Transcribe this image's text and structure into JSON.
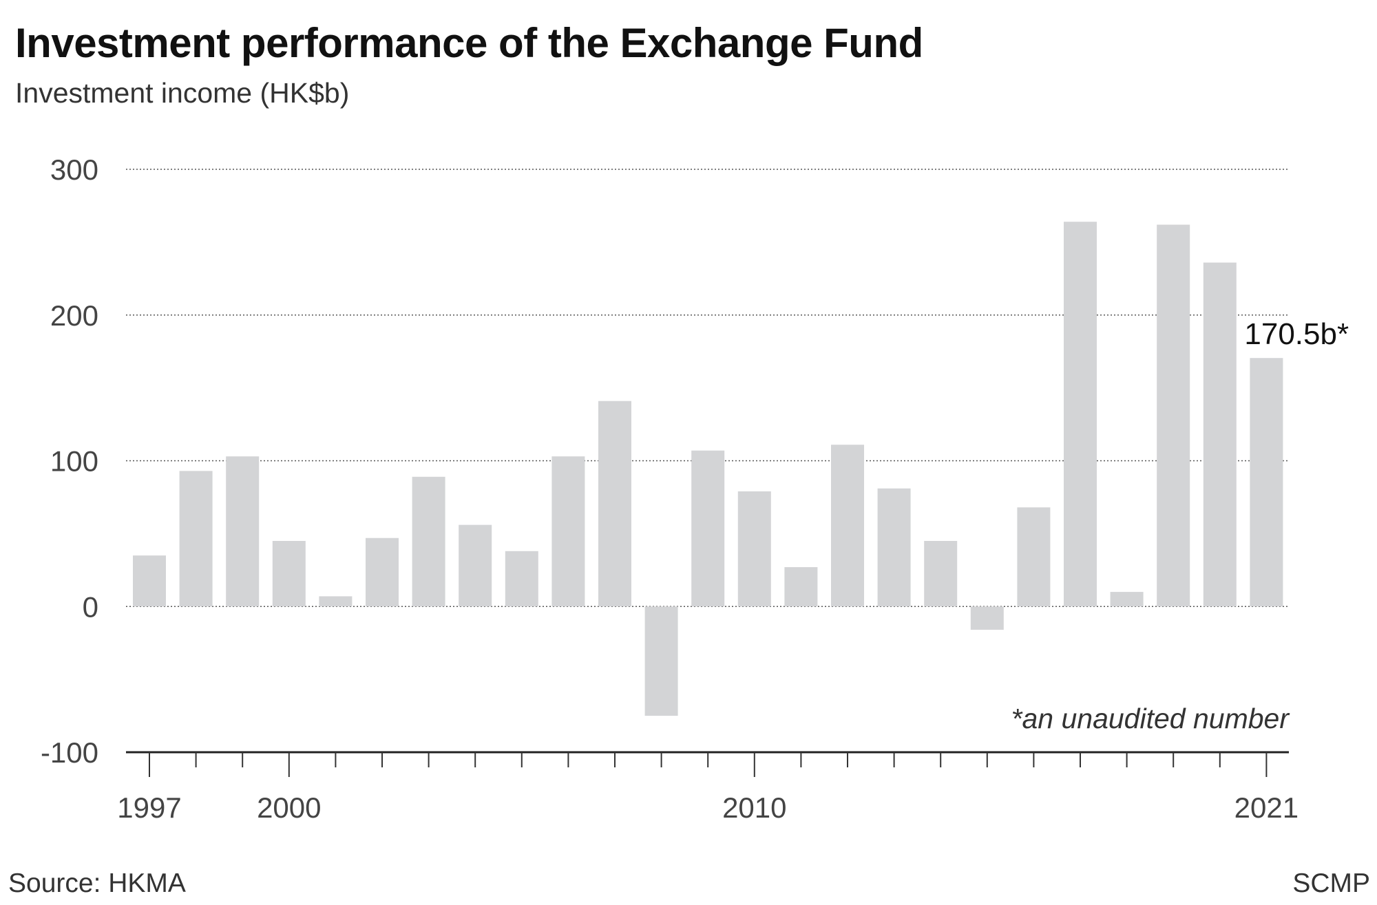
{
  "chart_data": {
    "type": "bar",
    "title": "Investment performance of the Exchange Fund",
    "subtitle": "Investment income (HK$b)",
    "x": [
      1997,
      1998,
      1999,
      2000,
      2001,
      2002,
      2003,
      2004,
      2005,
      2006,
      2007,
      2008,
      2009,
      2010,
      2011,
      2012,
      2013,
      2014,
      2015,
      2016,
      2017,
      2018,
      2019,
      2020,
      2021
    ],
    "values": [
      35,
      93,
      103,
      45,
      7,
      47,
      89,
      56,
      38,
      103,
      141,
      -75,
      107,
      79,
      27,
      111,
      81,
      45,
      -16,
      68,
      264,
      10,
      262,
      236,
      170.5
    ],
    "ylim": [
      -100,
      300
    ],
    "yticks": [
      300,
      200,
      100,
      0,
      -100
    ],
    "ytick_labels": [
      "300",
      "200",
      "100",
      "0",
      "-100"
    ],
    "xtick_labels": [
      {
        "year": 1997,
        "label": "1997"
      },
      {
        "year": 2000,
        "label": "2000"
      },
      {
        "year": 2010,
        "label": "2010"
      },
      {
        "year": 2021,
        "label": "2021"
      }
    ],
    "grid": true,
    "bar_color": "#d3d4d6",
    "callout": {
      "year": 2021,
      "label": "170.5b*"
    },
    "note": "*an unaudited number"
  },
  "footer": {
    "source": "Source: HKMA",
    "credit": "SCMP"
  }
}
